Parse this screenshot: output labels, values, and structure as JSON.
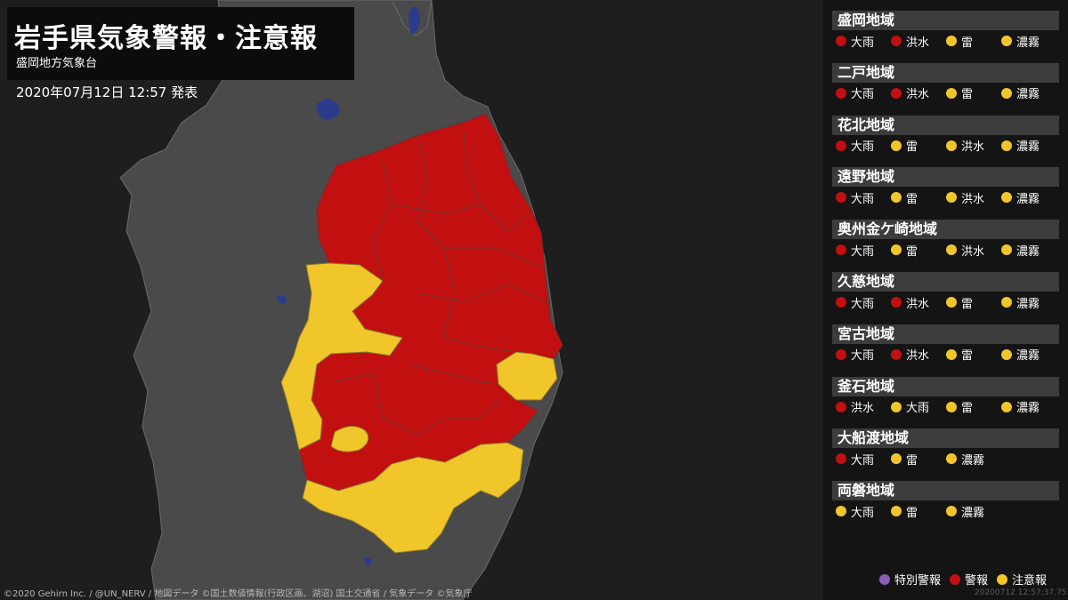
{
  "header": {
    "title": "岩手県気象警報・注意報",
    "subtitle": "盛岡地方気象台",
    "issued": "2020年07月12日 12:57 発表"
  },
  "credits": "©2020 Gehirn Inc. / @UN_NERV / 地図データ ©国土数値情報(行政区画、湖沼) 国土交通省 / 気象データ ©気象庁",
  "colors": {
    "warning": "#c20f0f",
    "advisory": "#f1c62a",
    "special": "#8a5fb5",
    "land": "#4a4a4a",
    "sea": "#1e1e1e",
    "lake": "#2d3c8a"
  },
  "regions": [
    {
      "name": "盛岡地域",
      "alerts": [
        {
          "label": "大雨",
          "level": "warning"
        },
        {
          "label": "洪水",
          "level": "warning"
        },
        {
          "label": "雷",
          "level": "advisory"
        },
        {
          "label": "濃霧",
          "level": "advisory"
        }
      ]
    },
    {
      "name": "二戸地域",
      "alerts": [
        {
          "label": "大雨",
          "level": "warning"
        },
        {
          "label": "洪水",
          "level": "warning"
        },
        {
          "label": "雷",
          "level": "advisory"
        },
        {
          "label": "濃霧",
          "level": "advisory"
        }
      ]
    },
    {
      "name": "花北地域",
      "alerts": [
        {
          "label": "大雨",
          "level": "warning"
        },
        {
          "label": "雷",
          "level": "advisory"
        },
        {
          "label": "洪水",
          "level": "advisory"
        },
        {
          "label": "濃霧",
          "level": "advisory"
        }
      ]
    },
    {
      "name": "遠野地域",
      "alerts": [
        {
          "label": "大雨",
          "level": "warning"
        },
        {
          "label": "雷",
          "level": "advisory"
        },
        {
          "label": "洪水",
          "level": "advisory"
        },
        {
          "label": "濃霧",
          "level": "advisory"
        }
      ]
    },
    {
      "name": "奥州金ケ崎地域",
      "alerts": [
        {
          "label": "大雨",
          "level": "warning"
        },
        {
          "label": "雷",
          "level": "advisory"
        },
        {
          "label": "洪水",
          "level": "advisory"
        },
        {
          "label": "濃霧",
          "level": "advisory"
        }
      ]
    },
    {
      "name": "久慈地域",
      "alerts": [
        {
          "label": "大雨",
          "level": "warning"
        },
        {
          "label": "洪水",
          "level": "warning"
        },
        {
          "label": "雷",
          "level": "advisory"
        },
        {
          "label": "濃霧",
          "level": "advisory"
        }
      ]
    },
    {
      "name": "宮古地域",
      "alerts": [
        {
          "label": "大雨",
          "level": "warning"
        },
        {
          "label": "洪水",
          "level": "warning"
        },
        {
          "label": "雷",
          "level": "advisory"
        },
        {
          "label": "濃霧",
          "level": "advisory"
        }
      ]
    },
    {
      "name": "釜石地域",
      "alerts": [
        {
          "label": "洪水",
          "level": "warning"
        },
        {
          "label": "大雨",
          "level": "advisory"
        },
        {
          "label": "雷",
          "level": "advisory"
        },
        {
          "label": "濃霧",
          "level": "advisory"
        }
      ]
    },
    {
      "name": "大船渡地域",
      "alerts": [
        {
          "label": "大雨",
          "level": "warning"
        },
        {
          "label": "雷",
          "level": "advisory"
        },
        {
          "label": "濃霧",
          "level": "advisory"
        }
      ]
    },
    {
      "name": "両磐地域",
      "alerts": [
        {
          "label": "大雨",
          "level": "advisory"
        },
        {
          "label": "雷",
          "level": "advisory"
        },
        {
          "label": "濃霧",
          "level": "advisory"
        }
      ]
    }
  ],
  "legend": [
    {
      "label": "特別警報",
      "level": "special"
    },
    {
      "label": "警報",
      "level": "warning"
    },
    {
      "label": "注意報",
      "level": "advisory"
    }
  ],
  "timestamp": "20200712 12:57:37.753"
}
